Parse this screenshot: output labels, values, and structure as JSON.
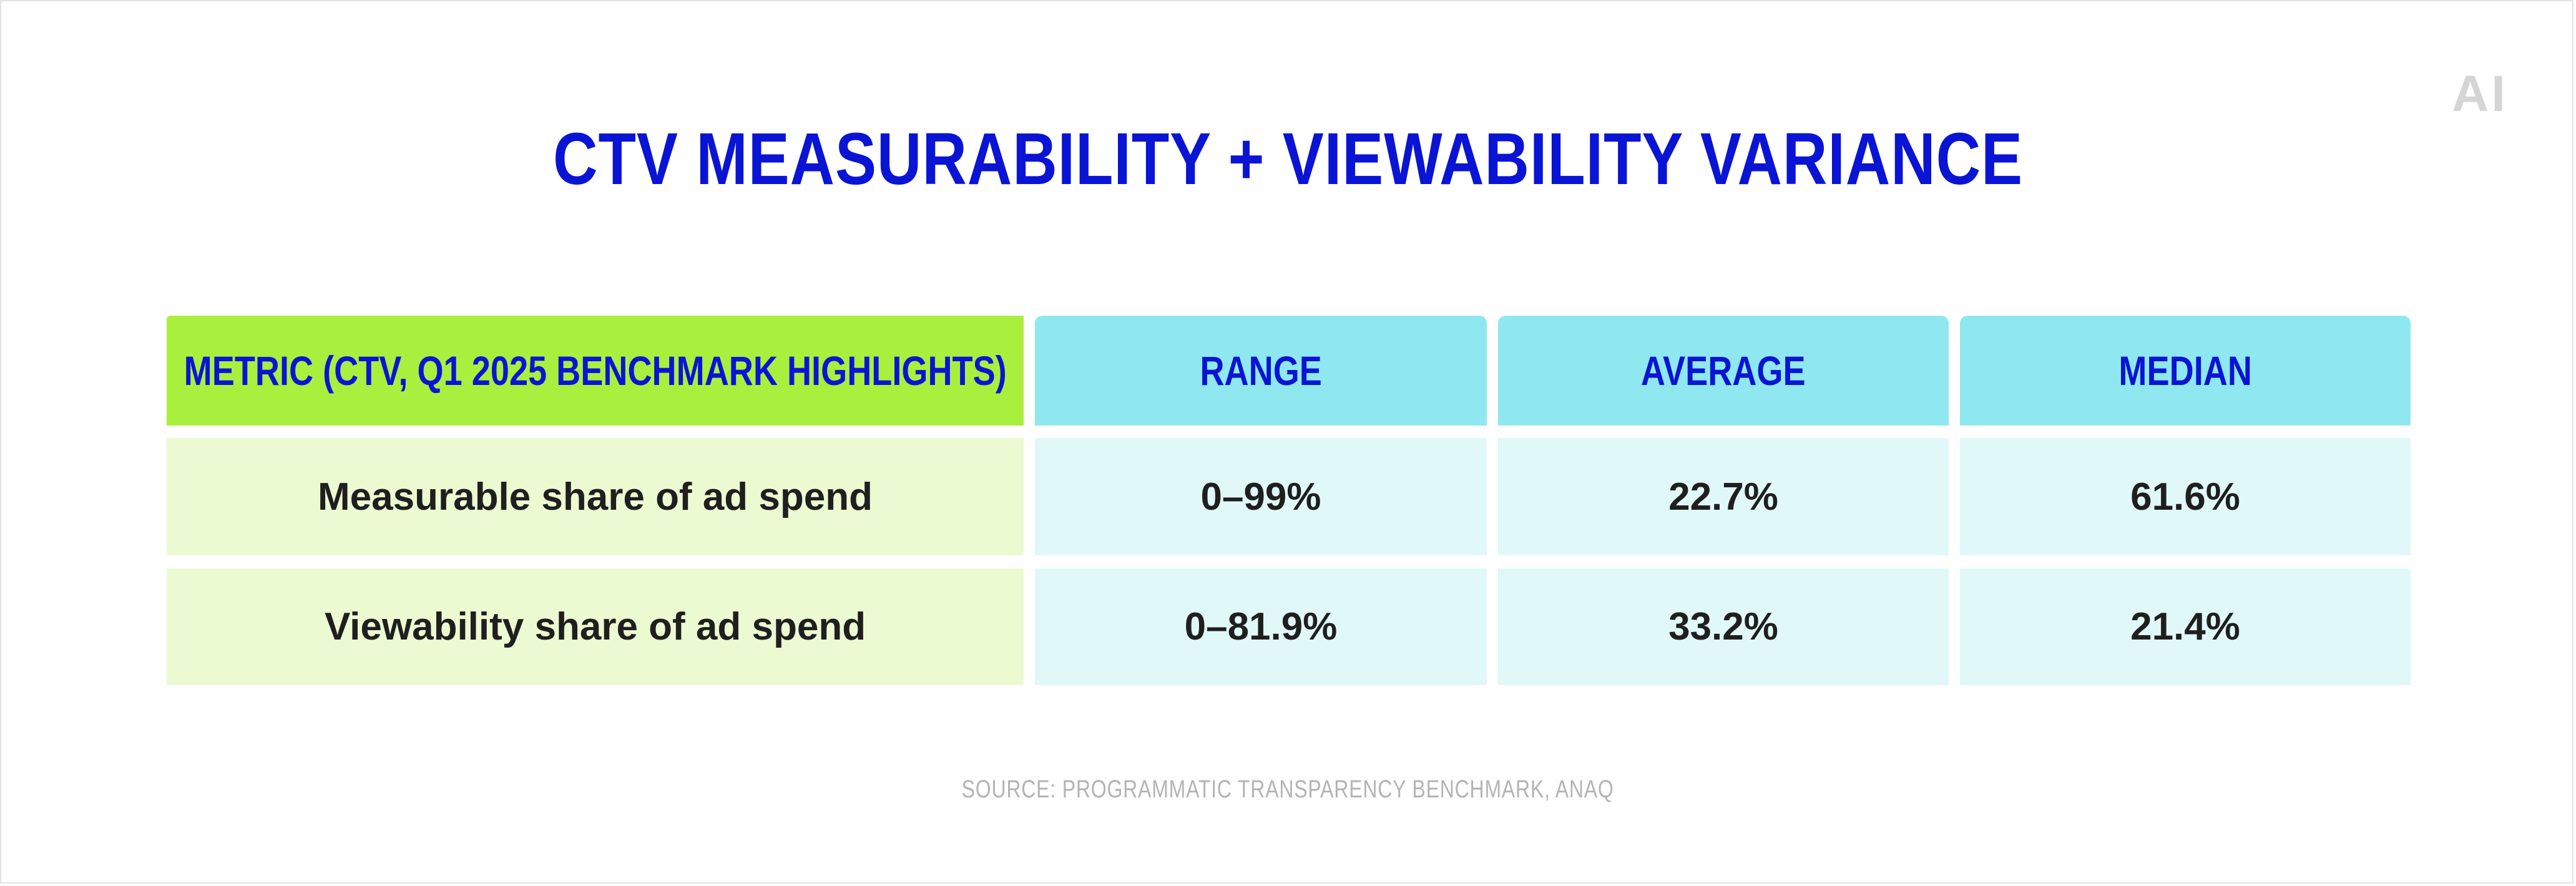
{
  "brand": {
    "logo_text": "AI"
  },
  "chart_data": {
    "type": "table",
    "title": "CTV MEASURABILITY + VIEWABILITY VARIANCE",
    "columns": [
      "METRIC (CTV, Q1 2025 BENCHMARK HIGHLIGHTS)",
      "RANGE",
      "AVERAGE",
      "MEDIAN"
    ],
    "rows": [
      {
        "metric": "Measurable share of ad spend",
        "range": "0–99%",
        "average": "22.7%",
        "median": "61.6%"
      },
      {
        "metric": "Viewability share of ad spend",
        "range": "0–81.9%",
        "average": "33.2%",
        "median": "21.4%"
      }
    ],
    "source": "SOURCE: PROGRAMMATIC TRANSPARENCY BENCHMARK, ANAQ"
  },
  "colors": {
    "title": "#0a14d4",
    "metric_header_bg": "#a9ef3e",
    "column_header_bg": "#8fe8ef",
    "metric_cell_bg": "#ebfad1",
    "value_cell_bg": "#e1f8f9"
  }
}
